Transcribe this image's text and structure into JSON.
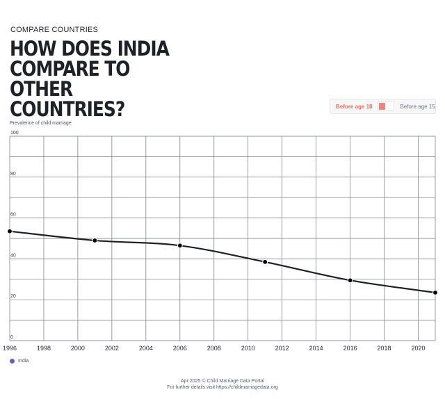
{
  "header": {
    "eyebrow": "COMPARE COUNTRIES",
    "title": "HOW DOES INDIA COMPARE TO OTHER COUNTRIES?"
  },
  "toggle": {
    "option_a": "Before age 18",
    "option_b": "Before age 15",
    "selected": "Before age 18",
    "accent": "#f0857a"
  },
  "chart_data": {
    "type": "line",
    "ylabel": "Prevalence of child marriage",
    "ylim": [
      0,
      100
    ],
    "yticks": [
      0,
      20,
      40,
      60,
      80,
      100
    ],
    "xlim": [
      1996,
      2021
    ],
    "xticks": [
      1996,
      1998,
      2000,
      2002,
      2004,
      2006,
      2008,
      2010,
      2012,
      2014,
      2016,
      2018,
      2020
    ],
    "grid": true,
    "series": [
      {
        "name": "India",
        "color": "#1e2227",
        "legend_color": "#6b5fb5",
        "x": [
          1996,
          2001,
          2006,
          2011,
          2016,
          2021
        ],
        "y": [
          53.5,
          49,
          46.5,
          38.5,
          29.5,
          23.5
        ]
      }
    ]
  },
  "footer": {
    "line1": "Apr 2025 © Child Marriage Data Portal",
    "line2": "For further details visit https://childmarriagedata.org"
  }
}
